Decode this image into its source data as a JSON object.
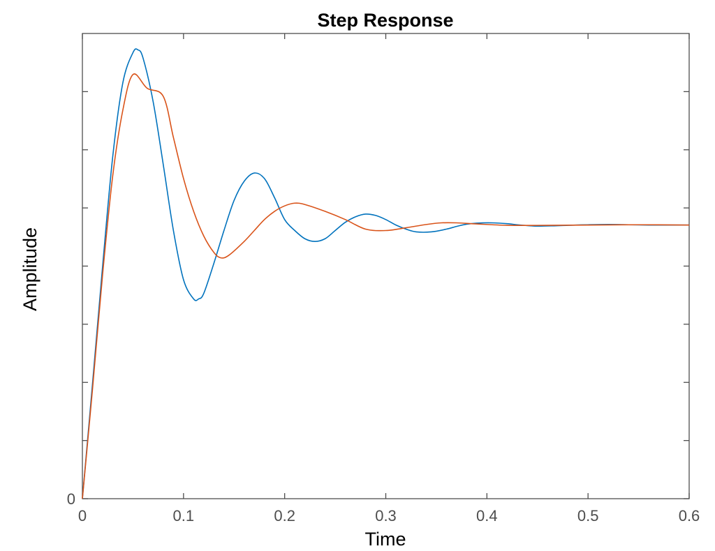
{
  "chart_data": {
    "type": "line",
    "title": "Step Response",
    "xlabel": "Time",
    "ylabel": "Amplitude",
    "xlim": [
      0,
      0.6
    ],
    "ylim": [
      0,
      1.7
    ],
    "x_ticks": [
      "0",
      "0.1",
      "0.2",
      "0.3",
      "0.4",
      "0.5",
      "0.6"
    ],
    "y_tick_labels": [
      "0"
    ],
    "y_tick_values": [
      0,
      0.2125,
      0.425,
      0.6375,
      0.85,
      1.0625,
      1.275,
      1.4875
    ],
    "grid": false,
    "series": [
      {
        "color": "#0072BD",
        "x": [
          0,
          0.01,
          0.02,
          0.03,
          0.04,
          0.05,
          0.055,
          0.06,
          0.07,
          0.08,
          0.09,
          0.1,
          0.11,
          0.115,
          0.12,
          0.13,
          0.14,
          0.15,
          0.16,
          0.17,
          0.18,
          0.19,
          0.2,
          0.21,
          0.22,
          0.23,
          0.24,
          0.25,
          0.26,
          0.27,
          0.28,
          0.29,
          0.3,
          0.31,
          0.32,
          0.33,
          0.345,
          0.36,
          0.37,
          0.38,
          0.39,
          0.405,
          0.42,
          0.43,
          0.44,
          0.45,
          0.465,
          0.48,
          0.5,
          0.52,
          0.54,
          0.56,
          0.58,
          0.6
        ],
        "y": [
          0,
          0.42,
          0.85,
          1.25,
          1.52,
          1.63,
          1.64,
          1.61,
          1.45,
          1.22,
          0.98,
          0.8,
          0.73,
          0.73,
          0.75,
          0.86,
          0.98,
          1.09,
          1.16,
          1.19,
          1.17,
          1.1,
          1.02,
          0.98,
          0.95,
          0.94,
          0.95,
          0.98,
          1.01,
          1.03,
          1.04,
          1.035,
          1.02,
          1.0,
          0.985,
          0.975,
          0.975,
          0.985,
          0.995,
          1.003,
          1.007,
          1.008,
          1.005,
          1.001,
          0.998,
          0.996,
          0.997,
          0.999,
          1.001,
          1.002,
          1.001,
          1.0,
          1.0,
          1.0
        ]
      },
      {
        "color": "#D95319",
        "x": [
          0,
          0.01,
          0.02,
          0.03,
          0.04,
          0.05,
          0.064,
          0.08,
          0.09,
          0.1,
          0.11,
          0.12,
          0.13,
          0.137,
          0.145,
          0.16,
          0.17,
          0.18,
          0.19,
          0.2,
          0.21,
          0.22,
          0.24,
          0.26,
          0.28,
          0.3,
          0.32,
          0.34,
          0.355,
          0.37,
          0.39,
          0.42,
          0.46,
          0.5,
          0.55,
          0.6
        ],
        "y": [
          0,
          0.4,
          0.82,
          1.18,
          1.42,
          1.55,
          1.5,
          1.47,
          1.32,
          1.17,
          1.05,
          0.96,
          0.9,
          0.88,
          0.89,
          0.94,
          0.98,
          1.02,
          1.05,
          1.07,
          1.08,
          1.075,
          1.05,
          1.02,
          0.985,
          0.98,
          0.99,
          1.002,
          1.008,
          1.008,
          1.004,
          0.999,
          0.999,
          1.0,
          1.001,
          1.0
        ]
      }
    ]
  }
}
